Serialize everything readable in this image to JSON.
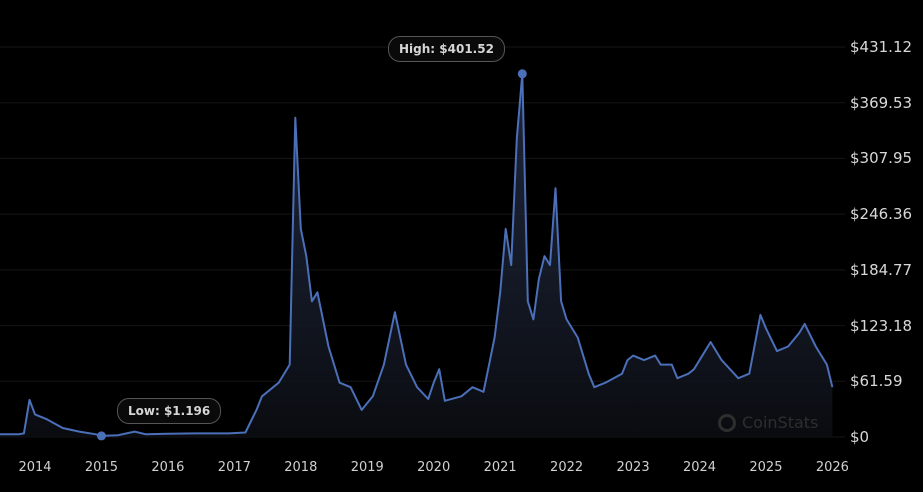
{
  "chart_data": {
    "type": "area",
    "title": "",
    "xlabel": "",
    "ylabel": "",
    "ylim": [
      0,
      431.12
    ],
    "grid": true,
    "y_ticks": [
      "$431.12",
      "$369.53",
      "$307.95",
      "$246.36",
      "$184.77",
      "$123.18",
      "$61.59",
      "$0"
    ],
    "y_tick_values": [
      431.12,
      369.53,
      307.95,
      246.36,
      184.77,
      123.18,
      61.59,
      0
    ],
    "x_ticks": [
      "2014",
      "2015",
      "2016",
      "2017",
      "2018",
      "2019",
      "2020",
      "2021",
      "2022",
      "2023",
      "2024",
      "2025",
      "2026"
    ],
    "annotations": {
      "high": "High: $401.52",
      "low": "Low: $1.196"
    },
    "high": {
      "date": "2021-05",
      "value": 401.52
    },
    "low": {
      "date": "2015-01",
      "value": 1.196
    },
    "line_color": "#4b6fb8",
    "series": [
      {
        "x": [
          "2013-06",
          "2013-10",
          "2013-11",
          "2013-12",
          "2014-01",
          "2014-03",
          "2014-06",
          "2014-09",
          "2014-12",
          "2015-01",
          "2015-04",
          "2015-07",
          "2015-09",
          "2016-01",
          "2016-06",
          "2016-12",
          "2017-03",
          "2017-05",
          "2017-06",
          "2017-09",
          "2017-11",
          "2017-12",
          "2018-01",
          "2018-02",
          "2018-03",
          "2018-04",
          "2018-06",
          "2018-08",
          "2018-10",
          "2018-12",
          "2019-02",
          "2019-04",
          "2019-06",
          "2019-08",
          "2019-10",
          "2019-12",
          "2020-01",
          "2020-02",
          "2020-03",
          "2020-06",
          "2020-08",
          "2020-10",
          "2020-11",
          "2020-12",
          "2021-01",
          "2021-02",
          "2021-03",
          "2021-04",
          "2021-05",
          "2021-06",
          "2021-07",
          "2021-08",
          "2021-09",
          "2021-10",
          "2021-11",
          "2021-12",
          "2022-01",
          "2022-03",
          "2022-05",
          "2022-06",
          "2022-08",
          "2022-11",
          "2022-12",
          "2023-01",
          "2023-03",
          "2023-05",
          "2023-06",
          "2023-08",
          "2023-09",
          "2023-11",
          "2023-12",
          "2024-03",
          "2024-05",
          "2024-08",
          "2024-10",
          "2024-12",
          "2025-01",
          "2025-03",
          "2025-05",
          "2025-07",
          "2025-08",
          "2025-10",
          "2025-12",
          "2026-01"
        ],
        "values": [
          3,
          3,
          4,
          41,
          25,
          20,
          10,
          6,
          3,
          1.196,
          2,
          6,
          3,
          3.5,
          4,
          4,
          5,
          30,
          45,
          60,
          80,
          353,
          230,
          200,
          150,
          160,
          100,
          60,
          55,
          30,
          45,
          80,
          138,
          80,
          55,
          42,
          60,
          75,
          40,
          45,
          55,
          50,
          80,
          110,
          160,
          230,
          190,
          330,
          401.52,
          150,
          130,
          175,
          200,
          190,
          275,
          150,
          130,
          110,
          70,
          55,
          60,
          70,
          85,
          90,
          85,
          90,
          80,
          80,
          65,
          70,
          75,
          105,
          85,
          65,
          70,
          135,
          120,
          95,
          100,
          115,
          125,
          100,
          80,
          55
        ]
      }
    ]
  },
  "watermark": "CoinStats"
}
